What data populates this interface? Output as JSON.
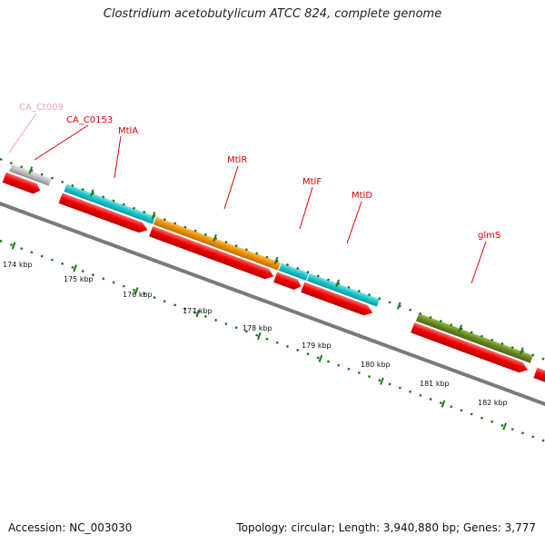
{
  "title": "Clostridium acetobutylicum ATCC 824, complete genome",
  "footer": {
    "accession": "Accession: NC_003030",
    "summary": "Topology: circular; Length: 3,940,880 bp; Genes: 3,777"
  },
  "scale_ticks": [
    "174 kbp",
    "175 kbp",
    "176 kbp",
    "177 kbp",
    "178 kbp",
    "179 kbp",
    "180 kbp",
    "181 kbp",
    "182 kbp"
  ],
  "gene_labels": [
    {
      "name": "CA_Ct009",
      "color": "#f4a0c0"
    },
    {
      "name": "CA_C0153",
      "color": "#dd0000"
    },
    {
      "name": "MtlA",
      "color": "#dd0000"
    },
    {
      "name": "MtlR",
      "color": "#dd0000"
    },
    {
      "name": "MtlF",
      "color": "#dd0000"
    },
    {
      "name": "MtlD",
      "color": "#dd0000"
    },
    {
      "name": "glmS",
      "color": "#dd0000"
    }
  ],
  "colors": {
    "cds": "#ee0000",
    "cyan": "#1fc4cc",
    "orange": "#f09000",
    "olive": "#6a8a22",
    "grey": "#bdbdbd",
    "backbone": "#777777",
    "ticks": "#1a7a1a"
  }
}
